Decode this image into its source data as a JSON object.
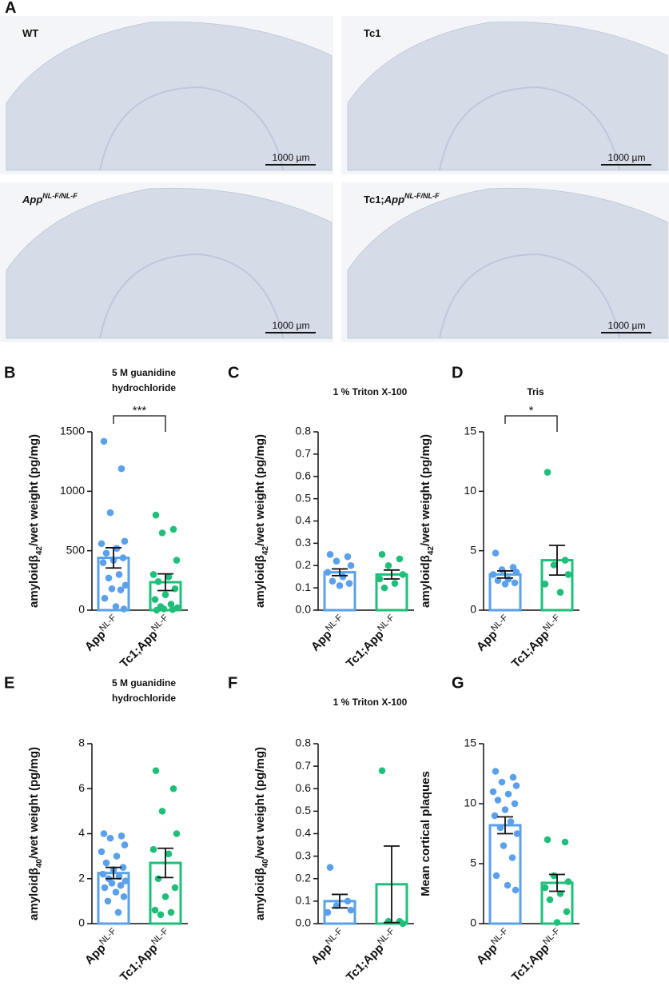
{
  "panel_a": {
    "letter": "A",
    "images": [
      {
        "label": "WT",
        "scale": "1000 µm"
      },
      {
        "label": "Tc1",
        "scale": "1000 µm"
      },
      {
        "label_italic": "App",
        "label_sup": "NL-F/NL-F",
        "scale": "1000 µm"
      },
      {
        "label": "Tc1;",
        "label_italic": "App",
        "label_sup": "NL-F/NL-F",
        "scale": "1000 µm"
      }
    ]
  },
  "chart_data": [
    {
      "type": "bar",
      "panel": "B",
      "title": [
        "5 M guanidine",
        "hydrochloride"
      ],
      "ylabel": [
        "amyloidβ",
        "42",
        "/wet weight (pg/mg)"
      ],
      "categories": [
        "App",
        "Tc1;App"
      ],
      "category_superscript": "NL-F",
      "colors": [
        "#5aa0ea",
        "#1fbf7a"
      ],
      "values": [
        440,
        235
      ],
      "errors": [
        85,
        70
      ],
      "points": [
        [
          1420,
          1190,
          820,
          580,
          560,
          520,
          480,
          440,
          420,
          400,
          300,
          270,
          210,
          180,
          170,
          100,
          30,
          10
        ],
        [
          800,
          680,
          650,
          420,
          300,
          280,
          240,
          180,
          130,
          90,
          50,
          30,
          20,
          10,
          5,
          0
        ]
      ],
      "significance": "***",
      "ylim": [
        0,
        1500
      ],
      "yticks": [
        0,
        500,
        1000,
        1500
      ]
    },
    {
      "type": "bar",
      "panel": "C",
      "title": [
        "1 % Triton X-100"
      ],
      "ylabel": [
        "amyloidβ",
        "42",
        "/wet weight (pg/mg)"
      ],
      "categories": [
        "App",
        "Tc1;App"
      ],
      "category_superscript": "NL-F",
      "colors": [
        "#5aa0ea",
        "#1fbf7a"
      ],
      "values": [
        0.17,
        0.16
      ],
      "errors": [
        0.015,
        0.02
      ],
      "points": [
        [
          0.25,
          0.24,
          0.22,
          0.2,
          0.17,
          0.15,
          0.13,
          0.12,
          0.11
        ],
        [
          0.25,
          0.23,
          0.2,
          0.16,
          0.14,
          0.12,
          0.1
        ]
      ],
      "ylim": [
        0,
        0.8
      ],
      "yticks": [
        {
          "value": 0,
          "label": "0.0"
        },
        0.1,
        0.2,
        0.3,
        0.4,
        0.5,
        0.6,
        0.7,
        0.8
      ]
    },
    {
      "type": "bar",
      "panel": "D",
      "title": [
        "Tris"
      ],
      "ylabel": [
        "amyloidβ",
        "42",
        "/wet weight (pg/mg)"
      ],
      "categories": [
        "App",
        "Tc1;App"
      ],
      "category_superscript": "NL-F",
      "colors": [
        "#5aa0ea",
        "#1fbf7a"
      ],
      "values": [
        3.0,
        4.2
      ],
      "errors": [
        0.3,
        1.25
      ],
      "points": [
        [
          4.8,
          3.6,
          3.4,
          3.2,
          3.0,
          2.6,
          2.5,
          2.3,
          2.2
        ],
        [
          11.6,
          4.2,
          3.8,
          3.0,
          2.2,
          1.5
        ]
      ],
      "significance": "*",
      "ylim": [
        0,
        15
      ],
      "yticks": [
        0,
        5,
        10,
        15
      ]
    },
    {
      "type": "bar",
      "panel": "E",
      "title": [
        "5 M guanidine",
        "hydrochloride"
      ],
      "ylabel": [
        "amyloidβ",
        "40",
        "/wet weight (pg/mg)"
      ],
      "categories": [
        "App",
        "Tc1;App"
      ],
      "category_superscript": "NL-F",
      "colors": [
        "#5aa0ea",
        "#1fbf7a"
      ],
      "values": [
        2.25,
        2.7
      ],
      "errors": [
        0.25,
        0.65
      ],
      "points": [
        [
          4.0,
          3.9,
          3.8,
          3.5,
          3.2,
          3.0,
          2.7,
          2.5,
          2.4,
          2.2,
          2.1,
          2.0,
          1.9,
          1.8,
          1.7,
          1.6,
          1.4,
          1.2,
          1.0,
          0.5
        ],
        [
          6.8,
          6.0,
          5.0,
          4.0,
          3.3,
          3.1,
          2.0,
          1.6,
          1.2,
          0.6,
          0.5,
          0.4
        ]
      ],
      "ylim": [
        0,
        8
      ],
      "yticks": [
        0,
        2,
        4,
        6,
        8
      ]
    },
    {
      "type": "bar",
      "panel": "F",
      "title": [
        "1 % Triton X-100"
      ],
      "ylabel": [
        "amyloidβ",
        "40",
        "/wet weight (pg/mg)"
      ],
      "categories": [
        "App",
        "Tc1;App"
      ],
      "category_superscript": "NL-F",
      "colors": [
        "#5aa0ea",
        "#1fbf7a"
      ],
      "values": [
        0.1,
        0.175
      ],
      "errors": [
        0.03,
        0.17
      ],
      "points": [
        [
          0.25,
          0.1,
          0.08,
          0.06,
          0.05
        ],
        [
          0.68,
          0.01,
          0.01,
          0.0
        ]
      ],
      "ylim": [
        0,
        0.8
      ],
      "yticks": [
        {
          "value": 0,
          "label": "0.0"
        },
        0.1,
        0.2,
        0.3,
        0.4,
        0.5,
        0.6,
        0.7,
        0.8
      ]
    },
    {
      "type": "bar",
      "panel": "G",
      "ylabel": [
        "Mean cortical plaques"
      ],
      "categories": [
        "App",
        "Tc1;App"
      ],
      "category_superscript": "NL-F",
      "colors": [
        "#5aa0ea",
        "#1fbf7a"
      ],
      "values": [
        8.2,
        3.4
      ],
      "errors": [
        0.7,
        0.7
      ],
      "points": [
        [
          12.7,
          12.2,
          11.8,
          11.5,
          11.0,
          10.8,
          10.3,
          10.0,
          9.5,
          9.0,
          8.5,
          8.0,
          7.5,
          6.5,
          5.5,
          4.0,
          3.2,
          2.8
        ],
        [
          7.0,
          6.8,
          4.0,
          3.5,
          3.0,
          2.5,
          2.0,
          1.0,
          0.1
        ]
      ],
      "ylim": [
        0,
        15
      ],
      "yticks": [
        0,
        5,
        10,
        15
      ]
    }
  ]
}
